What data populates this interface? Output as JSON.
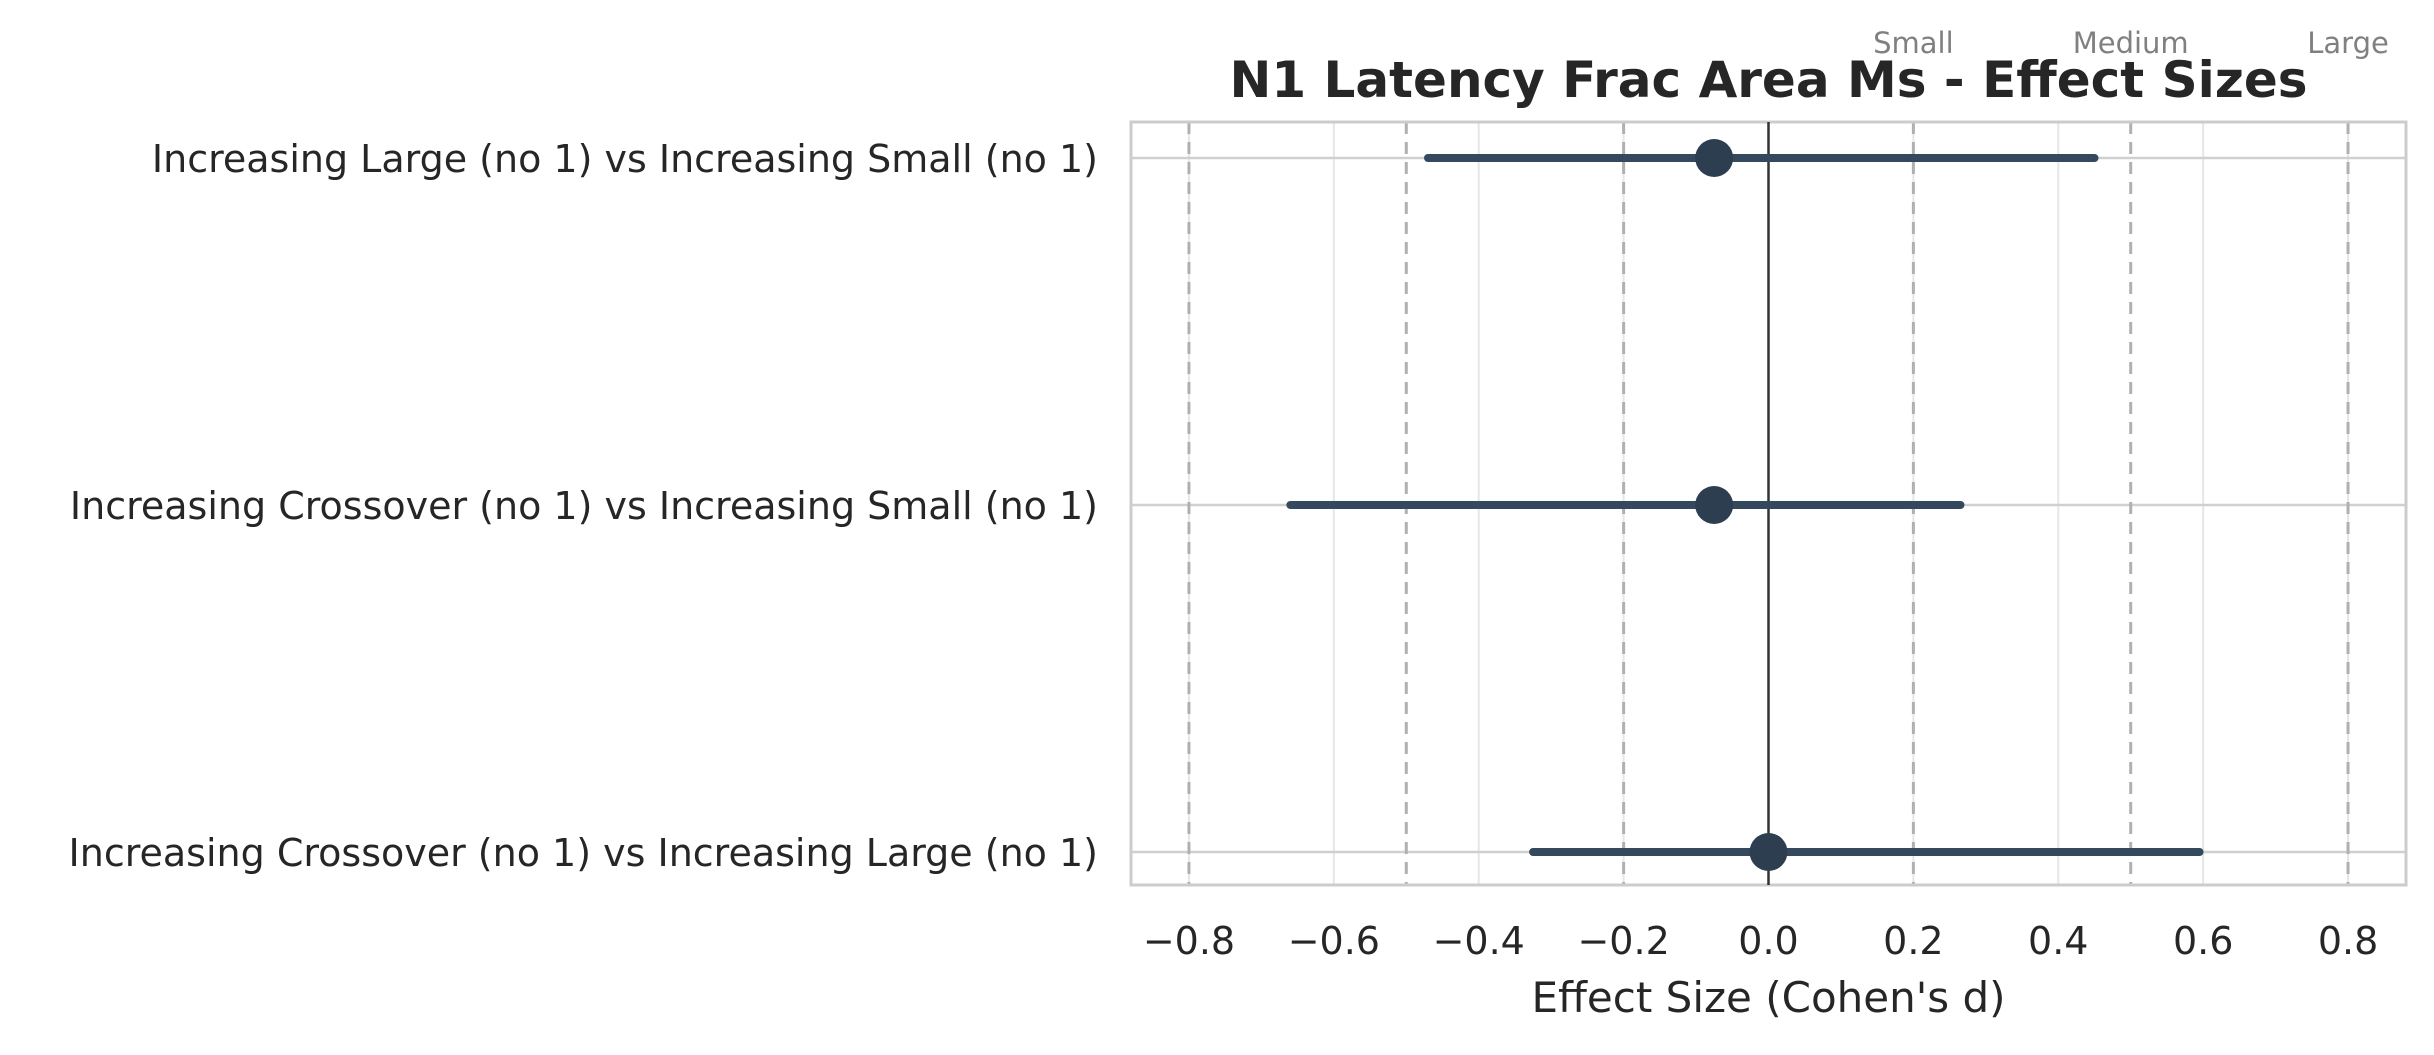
{
  "chart_data": {
    "type": "forest",
    "title": "N1 Latency Frac Area Ms - Effect Sizes",
    "xlabel": "Effect Size (Cohen's d)",
    "ylabel": "",
    "xlim": [
      -0.88,
      0.88
    ],
    "xticks": [
      -0.8,
      -0.6,
      -0.4,
      -0.2,
      0.0,
      0.2,
      0.4,
      0.6,
      0.8
    ],
    "xtick_labels": [
      "−0.8",
      "−0.6",
      "−0.4",
      "−0.2",
      "0.0",
      "0.2",
      "0.4",
      "0.6",
      "0.8"
    ],
    "grid": true,
    "zero_line": 0.0,
    "reference_lines": [
      -0.8,
      -0.5,
      -0.2,
      0.2,
      0.5,
      0.8
    ],
    "reference_labels": [
      {
        "value": 0.2,
        "text": "Small"
      },
      {
        "value": 0.5,
        "text": "Medium"
      },
      {
        "value": 0.8,
        "text": "Large"
      }
    ],
    "colors": {
      "marker": "#2c3e50",
      "ci": "#34495e",
      "reference": "#b0b0b0",
      "grid": "#e6e6e6",
      "ref_text": "#808080"
    },
    "comparisons": [
      {
        "label": "Increasing Large (no 1) vs Increasing Small (no 1)",
        "effect": -0.075,
        "ci_low": -0.47,
        "ci_high": 0.45
      },
      {
        "label": "Increasing Crossover (no 1) vs Increasing Small (no 1)",
        "effect": -0.075,
        "ci_low": -0.66,
        "ci_high": 0.265
      },
      {
        "label": "Increasing Crossover (no 1) vs Increasing Large (no 1)",
        "effect": 0.0,
        "ci_low": -0.325,
        "ci_high": 0.595
      }
    ]
  }
}
